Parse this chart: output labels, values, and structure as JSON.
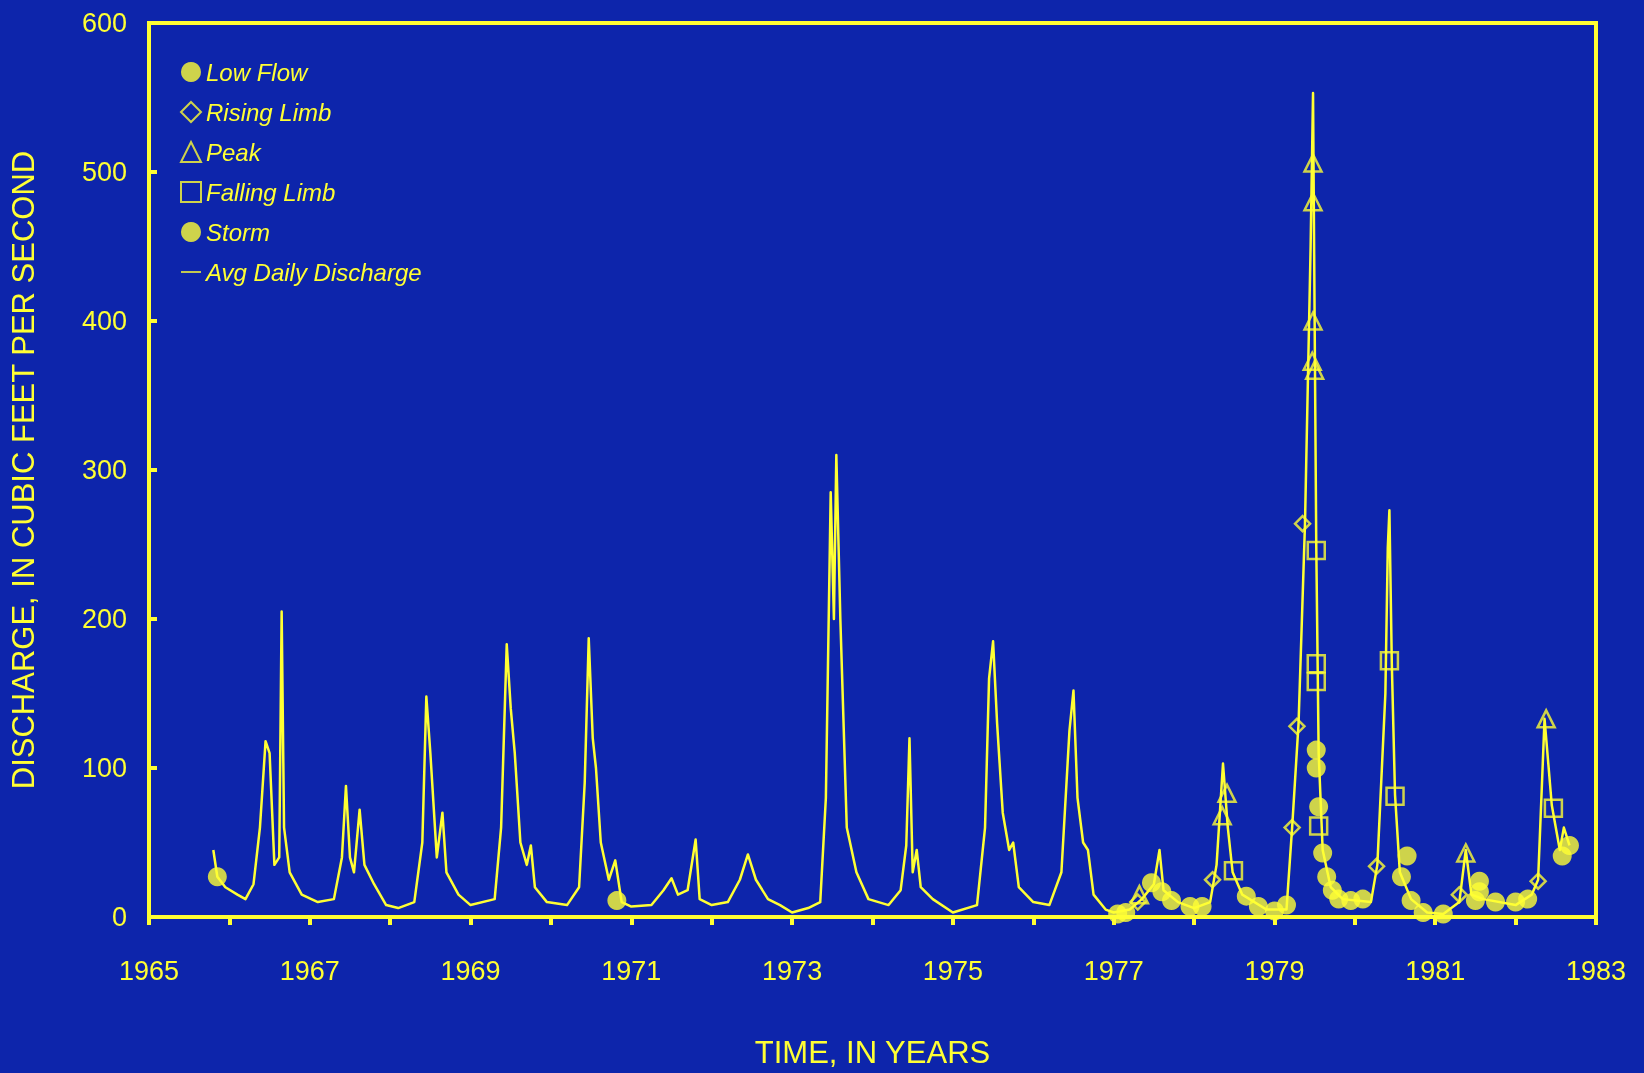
{
  "chart_data": {
    "type": "line",
    "xlabel": "TIME, IN YEARS",
    "ylabel": "DISCHARGE, IN CUBIC FEET PER SECOND",
    "xlim": [
      1965,
      1983
    ],
    "xticks": [
      1965,
      {
        "value": 1966,
        "label": null
      },
      1967,
      {
        "value": 1968,
        "label": null
      },
      1969,
      {
        "value": 1970,
        "label": null
      },
      1971,
      {
        "value": 1972,
        "label": null
      },
      1973,
      {
        "value": 1974,
        "label": null
      },
      1975,
      {
        "value": 1976,
        "label": null
      },
      1977,
      {
        "value": 1978,
        "label": null
      },
      1979,
      {
        "value": 1980,
        "label": null
      },
      1981,
      {
        "value": 1982,
        "label": null
      },
      1983
    ],
    "ylim": [
      0,
      600
    ],
    "yticks": [
      0,
      100,
      200,
      300,
      400,
      500,
      600
    ],
    "grid": false,
    "legend": "top left",
    "series": [
      {
        "name": "Low Flow",
        "type": "scatter",
        "marker": "circle",
        "color": "#ffff33",
        "x": [
          1965.85,
          1970.82,
          1977.05,
          1977.15,
          1977.95,
          1978.1,
          1978.65,
          1978.8,
          1979.0,
          1979.15,
          1979.52,
          1979.52,
          1979.55,
          1979.6,
          1979.65,
          1979.72,
          1979.8,
          1979.95,
          1980.1,
          1980.58,
          1980.7,
          1980.85,
          1981.1,
          1981.5,
          1981.75,
          1982.0,
          1982.15,
          1982.58
        ],
        "values": [
          27,
          11,
          2,
          3,
          7,
          7,
          14,
          7,
          4,
          8,
          112,
          100,
          74,
          43,
          27,
          18,
          12,
          11,
          12,
          27,
          11,
          3,
          2,
          11,
          10,
          10,
          12,
          41
        ]
      },
      {
        "name": "Rising Limb",
        "type": "scatter",
        "marker": "diamond",
        "color": "#ffff33",
        "x": [
          1977.3,
          1978.23,
          1979.22,
          1979.28,
          1979.35,
          1980.27,
          1981.3,
          1982.28
        ],
        "values": [
          10,
          25,
          60,
          128,
          264,
          34,
          15,
          24
        ]
      },
      {
        "name": "Peak",
        "type": "scatter",
        "marker": "triangle",
        "color": "#ffff33",
        "x": [
          1977.32,
          1978.35,
          1978.41,
          1979.48,
          1979.48,
          1979.48,
          1979.47,
          1979.5,
          1981.38,
          1982.38
        ],
        "values": [
          15,
          68,
          83,
          506,
          480,
          400,
          373,
          367,
          43,
          133
        ]
      },
      {
        "name": "Falling Limb",
        "type": "scatter",
        "marker": "square",
        "color": "#ffff33",
        "x": [
          1978.49,
          1979.52,
          1979.52,
          1979.52,
          1979.55,
          1980.43,
          1980.5,
          1982.47
        ],
        "values": [
          31,
          246,
          170,
          158,
          61,
          172,
          81,
          73
        ]
      },
      {
        "name": "Storm",
        "type": "scatter",
        "marker": "circle",
        "color": "#ffff33",
        "x": [
          1977.47,
          1977.6,
          1977.72,
          1980.65,
          1981.55,
          1981.55,
          1982.67
        ],
        "values": [
          23,
          17,
          11,
          41,
          24,
          17,
          48
        ]
      },
      {
        "name": "Avg Daily Discharge",
        "marker": "none",
        "color": "#ffff33",
        "x": [
          1965.8,
          1965.85,
          1965.95,
          1966.1,
          1966.2,
          1966.3,
          1966.38,
          1966.45,
          1966.5,
          1966.56,
          1966.62,
          1966.65,
          1966.68,
          1966.75,
          1966.9,
          1967.1,
          1967.3,
          1967.4,
          1967.45,
          1967.5,
          1967.55,
          1967.62,
          1967.68,
          1967.8,
          1967.95,
          1968.1,
          1968.3,
          1968.4,
          1968.45,
          1968.5,
          1968.58,
          1968.65,
          1968.7,
          1968.85,
          1969.0,
          1969.3,
          1969.38,
          1969.45,
          1969.5,
          1969.55,
          1969.62,
          1969.7,
          1969.75,
          1969.8,
          1969.95,
          1970.2,
          1970.35,
          1970.42,
          1970.47,
          1970.52,
          1970.56,
          1970.62,
          1970.72,
          1970.8,
          1970.88,
          1971.0,
          1971.25,
          1971.4,
          1971.5,
          1971.58,
          1971.7,
          1971.8,
          1971.85,
          1972.0,
          1972.2,
          1972.35,
          1972.45,
          1972.55,
          1972.7,
          1972.85,
          1973.0,
          1973.2,
          1973.35,
          1973.42,
          1973.48,
          1973.52,
          1973.55,
          1973.6,
          1973.68,
          1973.8,
          1973.95,
          1974.2,
          1974.35,
          1974.42,
          1974.46,
          1974.5,
          1974.55,
          1974.6,
          1974.75,
          1975.0,
          1975.3,
          1975.4,
          1975.45,
          1975.5,
          1975.55,
          1975.62,
          1975.7,
          1975.75,
          1975.82,
          1976.0,
          1976.2,
          1976.35,
          1976.45,
          1976.5,
          1976.55,
          1976.62,
          1976.68,
          1976.75,
          1976.9,
          1977.0,
          1977.2,
          1977.35,
          1977.5,
          1977.57,
          1977.62,
          1977.8,
          1978.0,
          1978.2,
          1978.28,
          1978.36,
          1978.42,
          1978.48,
          1978.6,
          1978.9,
          1979.15,
          1979.22,
          1979.3,
          1979.38,
          1979.45,
          1979.48,
          1979.5,
          1979.52,
          1979.55,
          1979.6,
          1979.7,
          1979.85,
          1980.2,
          1980.28,
          1980.38,
          1980.41,
          1980.43,
          1980.46,
          1980.5,
          1980.56,
          1980.7,
          1980.9,
          1981.1,
          1981.3,
          1981.38,
          1981.45,
          1981.6,
          1982.0,
          1982.2,
          1982.28,
          1982.36,
          1982.45,
          1982.55,
          1982.6,
          1982.67
        ],
        "values": [
          45,
          27,
          20,
          15,
          12,
          22,
          60,
          118,
          110,
          35,
          40,
          205,
          60,
          30,
          15,
          10,
          12,
          40,
          88,
          40,
          30,
          72,
          35,
          22,
          8,
          6,
          10,
          50,
          148,
          110,
          40,
          70,
          30,
          15,
          8,
          12,
          60,
          183,
          140,
          110,
          50,
          35,
          48,
          20,
          10,
          8,
          20,
          90,
          187,
          120,
          100,
          50,
          25,
          38,
          10,
          7,
          8,
          18,
          26,
          15,
          18,
          52,
          12,
          8,
          10,
          25,
          42,
          25,
          12,
          8,
          3,
          6,
          10,
          80,
          285,
          200,
          310,
          200,
          60,
          30,
          12,
          8,
          18,
          48,
          120,
          30,
          45,
          20,
          12,
          3,
          8,
          60,
          160,
          185,
          130,
          70,
          45,
          50,
          20,
          10,
          8,
          30,
          125,
          152,
          80,
          50,
          45,
          15,
          5,
          3,
          5,
          12,
          22,
          45,
          18,
          10,
          6,
          10,
          35,
          103,
          60,
          30,
          15,
          5,
          5,
          60,
          130,
          264,
          450,
          553,
          400,
          250,
          110,
          45,
          20,
          12,
          10,
          35,
          150,
          248,
          273,
          170,
          82,
          30,
          12,
          3,
          2,
          10,
          45,
          15,
          12,
          8,
          15,
          25,
          133,
          75,
          45,
          60,
          48
        ]
      }
    ]
  }
}
